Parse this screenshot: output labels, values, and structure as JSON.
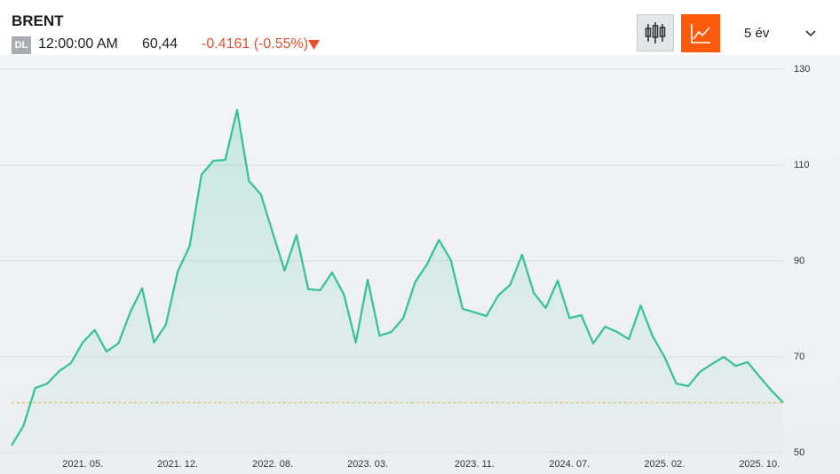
{
  "header": {
    "title": "BRENT",
    "badge": "DL",
    "time": "12:00:00 AM",
    "price": "60,44",
    "change": "-0.4161 (-0.55%)",
    "period": "5 év"
  },
  "chart_data": {
    "type": "area",
    "categories": [
      null,
      null,
      null,
      null,
      null,
      null,
      "2021. 05.",
      null,
      null,
      null,
      null,
      null,
      null,
      null,
      "2021. 12.",
      null,
      null,
      null,
      null,
      null,
      null,
      null,
      "2022. 08.",
      null,
      null,
      null,
      null,
      null,
      null,
      null,
      "2023. 03.",
      null,
      null,
      null,
      null,
      null,
      null,
      null,
      null,
      "2023. 11.",
      null,
      null,
      null,
      null,
      null,
      null,
      null,
      "2024. 07.",
      null,
      null,
      null,
      null,
      null,
      null,
      null,
      "2025. 02.",
      null,
      null,
      null,
      null,
      null,
      null,
      null,
      "2025. 10.",
      null,
      null
    ],
    "values": [
      51.5,
      55.6,
      63.5,
      64.4,
      67,
      68.7,
      73,
      75.6,
      71.1,
      72.8,
      79.3,
      84.3,
      73,
      76.7,
      87.8,
      93.1,
      108,
      110.9,
      111.1,
      121.5,
      106.7,
      103.9,
      95.9,
      88,
      95.4,
      84.1,
      83.9,
      87.6,
      83,
      73,
      86.1,
      74.4,
      75.2,
      78.1,
      85.6,
      89.3,
      94.4,
      90.2,
      80,
      79.3,
      78.5,
      82.8,
      85,
      91.3,
      83.3,
      80.2,
      85.9,
      78.1,
      78.7,
      72.8,
      76.3,
      75.2,
      73.7,
      80.7,
      74.3,
      70,
      64.4,
      63.9,
      66.9,
      68.5,
      70,
      68.1,
      68.9,
      65.9,
      63,
      60.44
    ],
    "color": "#33c196",
    "ylim": [
      50,
      130
    ],
    "yticks": [
      50,
      70,
      90,
      110,
      130
    ],
    "grid": true
  }
}
